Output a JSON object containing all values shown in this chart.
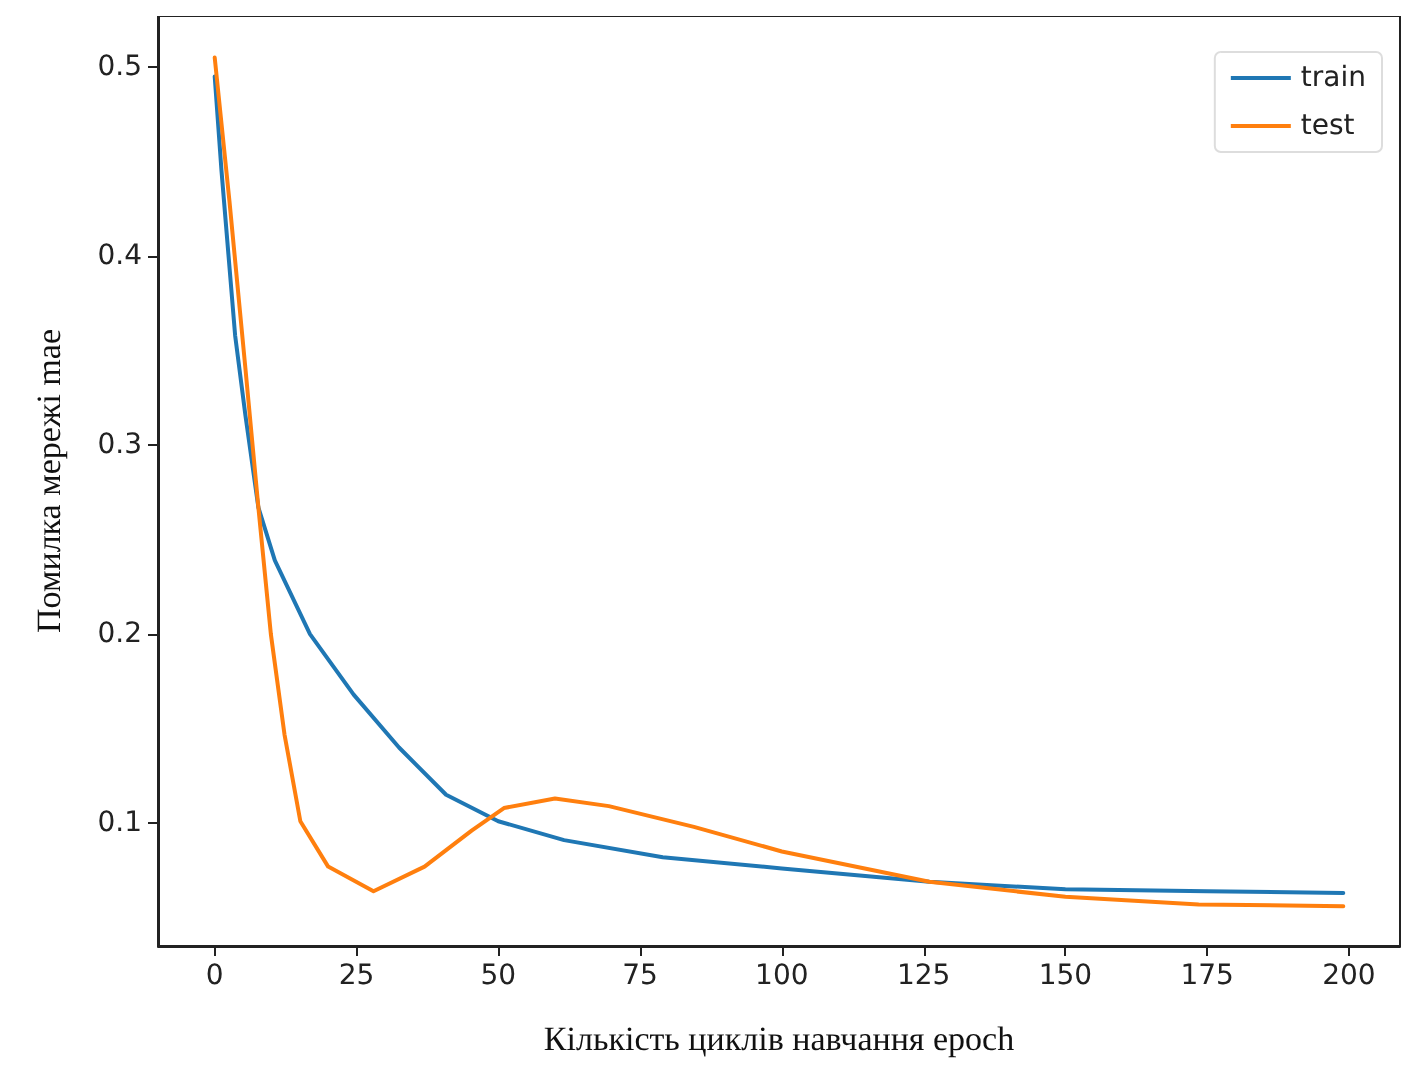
{
  "chart_data": {
    "type": "line",
    "xlabel": "Кількість циклів навчання epoch",
    "ylabel": "Помилка мережі mae",
    "xlim": [
      -10,
      209
    ],
    "xticks": [
      0,
      25,
      50,
      75,
      100,
      125,
      150,
      175,
      200
    ],
    "ylim": [
      0.035,
      0.527
    ],
    "yticks": [
      0.1,
      0.2,
      0.3,
      0.4,
      0.5
    ],
    "grid": false,
    "legend": "top right",
    "marker": "none",
    "line_style": "solid",
    "series": [
      {
        "name": "train",
        "color": "#1f77b4",
        "x": [
          0,
          1.2,
          3.6,
          5.4,
          7.7,
          10.6,
          16.8,
          24.5,
          32.5,
          40.8,
          50,
          61.6,
          79,
          100,
          126,
          150,
          175,
          199
        ],
        "values": [
          0.495,
          0.445,
          0.358,
          0.316,
          0.267,
          0.239,
          0.2,
          0.168,
          0.14,
          0.115,
          0.101,
          0.091,
          0.082,
          0.076,
          0.069,
          0.065,
          0.064,
          0.063
        ]
      },
      {
        "name": "test",
        "color": "#ff7f0e",
        "x": [
          0,
          2.6,
          5.4,
          7.7,
          9.9,
          12.3,
          15.1,
          20,
          28,
          37,
          45.3,
          51,
          60,
          69.5,
          84.5,
          100,
          126,
          150,
          173.5,
          199
        ],
        "values": [
          0.505,
          0.429,
          0.341,
          0.267,
          0.2,
          0.147,
          0.101,
          0.077,
          0.064,
          0.077,
          0.096,
          0.108,
          0.113,
          0.109,
          0.098,
          0.085,
          0.069,
          0.061,
          0.057,
          0.056
        ]
      }
    ]
  }
}
